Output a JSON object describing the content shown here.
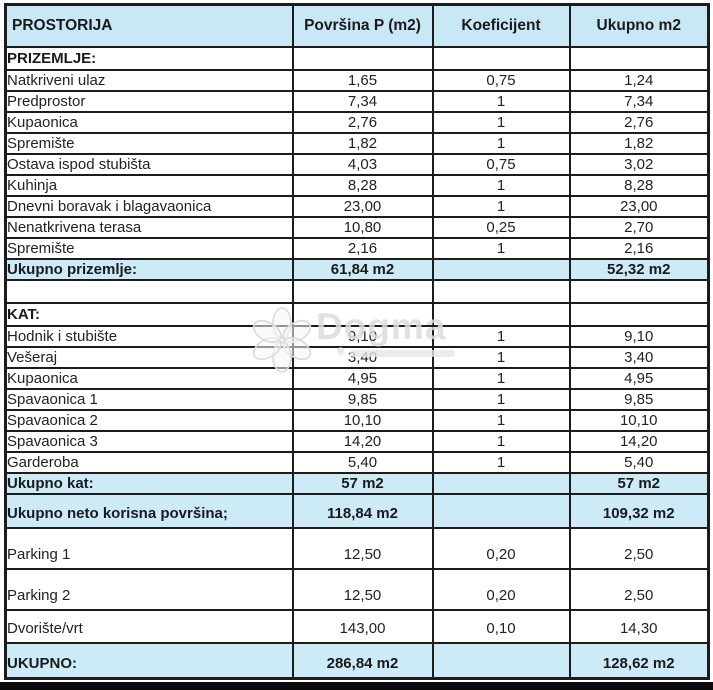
{
  "table": {
    "columns": [
      "PROSTORIJA",
      "Površina P (m2)",
      "Koeficijent",
      "Ukupno m2"
    ],
    "rows": [
      {
        "type": "section",
        "cells": [
          "PRIZEMLJE:",
          "",
          "",
          ""
        ]
      },
      {
        "type": "data",
        "cells": [
          "Natkriveni ulaz",
          "1,65",
          "0,75",
          "1,24"
        ]
      },
      {
        "type": "data",
        "cells": [
          "Predprostor",
          "7,34",
          "1",
          "7,34"
        ]
      },
      {
        "type": "data",
        "cells": [
          "Kupaonica",
          "2,76",
          "1",
          "2,76"
        ]
      },
      {
        "type": "data",
        "cells": [
          "Spremište",
          "1,82",
          "1",
          "1,82"
        ]
      },
      {
        "type": "data",
        "cells": [
          "Ostava ispod stubišta",
          "4,03",
          "0,75",
          "3,02"
        ]
      },
      {
        "type": "data",
        "cells": [
          "Kuhinja",
          "8,28",
          "1",
          "8,28"
        ]
      },
      {
        "type": "data",
        "cells": [
          "Dnevni boravak i blagavaonica",
          "23,00",
          "1",
          "23,00"
        ]
      },
      {
        "type": "data",
        "cells": [
          "Nenatkrivena terasa",
          "10,80",
          "0,25",
          "2,70"
        ]
      },
      {
        "type": "data",
        "cells": [
          "Spremište",
          "2,16",
          "1",
          "2,16"
        ]
      },
      {
        "type": "total",
        "cells": [
          "Ukupno prizemlje:",
          "61,84 m2",
          "",
          "52,32 m2"
        ]
      },
      {
        "type": "blank",
        "cells": [
          "",
          "",
          "",
          ""
        ]
      },
      {
        "type": "section",
        "cells": [
          "KAT:",
          "",
          "",
          ""
        ]
      },
      {
        "type": "data",
        "cells": [
          "Hodnik i stubište",
          "9,10",
          "1",
          "9,10"
        ]
      },
      {
        "type": "data",
        "cells": [
          "Vešeraj",
          "3,40",
          "1",
          "3,40"
        ]
      },
      {
        "type": "data",
        "cells": [
          "Kupaonica",
          "4,95",
          "1",
          "4,95"
        ]
      },
      {
        "type": "data",
        "cells": [
          "Spavaonica 1",
          "9,85",
          "1",
          "9,85"
        ]
      },
      {
        "type": "data",
        "cells": [
          "Spavaonica 2",
          "10,10",
          "1",
          "10,10"
        ]
      },
      {
        "type": "data",
        "cells": [
          "Spavaonica 3",
          "14,20",
          "1",
          "14,20"
        ]
      },
      {
        "type": "data",
        "cells": [
          "Garderoba",
          "5,40",
          "1",
          "5,40"
        ]
      },
      {
        "type": "total",
        "cells": [
          "Ukupno kat:",
          "57 m2",
          "",
          "57 m2"
        ]
      },
      {
        "type": "total_neto",
        "cells": [
          "Ukupno neto korisna površina;",
          "118,84 m2",
          "",
          "109,32 m2"
        ]
      },
      {
        "type": "data_tall",
        "cells": [
          "Parking 1",
          "12,50",
          "0,20",
          "2,50"
        ]
      },
      {
        "type": "data_tall",
        "cells": [
          "Parking 2",
          "12,50",
          "0,20",
          "2,50"
        ]
      },
      {
        "type": "data_med",
        "cells": [
          "Dvorište/vrt",
          "143,00",
          "0,10",
          "14,30"
        ]
      },
      {
        "type": "total_final",
        "cells": [
          "UKUPNO:",
          "286,84 m2",
          "",
          "128,62 m2"
        ]
      }
    ]
  },
  "watermark": {
    "text": "Dogma"
  },
  "colors": {
    "header_bg": "#c9e8f6",
    "total_bg": "#cdeaf7",
    "border": "#1c1c1c",
    "text": "#1a1a1a",
    "watermark": "#dcdcdc",
    "bottom_bar": "#0a0a0a"
  }
}
